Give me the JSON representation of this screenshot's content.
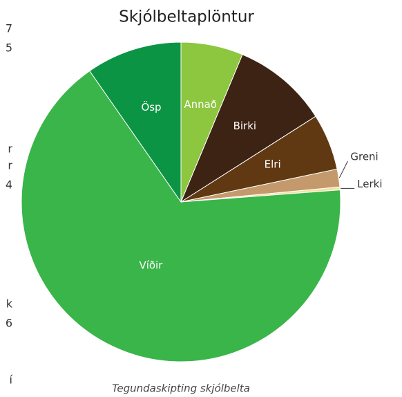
{
  "chart_data": {
    "type": "pie",
    "title": "Skjólbeltaplöntur",
    "caption": "Tegundaskipting skjólbelta",
    "categories": [
      "Annað",
      "Birki",
      "Elri",
      "Greni",
      "Lerki",
      "Víðir",
      "Ösp"
    ],
    "values": [
      6.3,
      9.7,
      5.7,
      1.8,
      0.3,
      66.5,
      9.7
    ],
    "colors": [
      "#8dc63f",
      "#3d2314",
      "#603913",
      "#c49a6c",
      "#f3e3a0",
      "#39b54a",
      "#0b9444"
    ],
    "left_text_fragments": [
      "7",
      "5",
      "r",
      "r",
      "4",
      "k",
      "6",
      "í"
    ]
  }
}
